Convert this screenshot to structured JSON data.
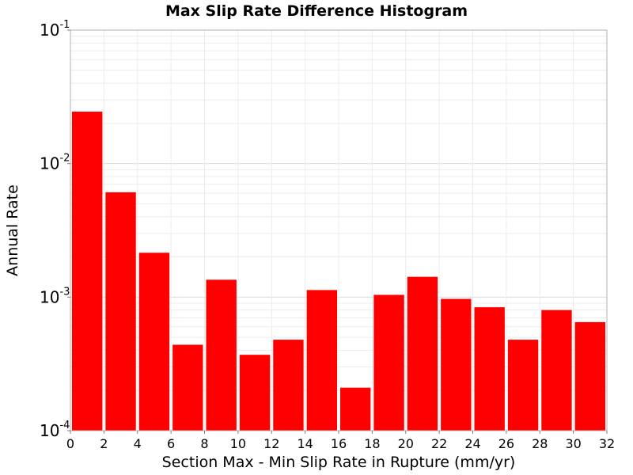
{
  "chart_data": {
    "type": "bar",
    "title": "Max Slip Rate Difference Histogram",
    "xlabel": "Section Max - Min Slip Rate in Rupture (mm/yr)",
    "ylabel": "Annual Rate",
    "xlim": [
      0,
      32
    ],
    "ylim": [
      0.0001,
      0.1
    ],
    "yscale": "log",
    "grid": true,
    "bar_color": "#ff0000",
    "bin_width": 2,
    "x_ticks": [
      0,
      2,
      4,
      6,
      8,
      10,
      12,
      14,
      16,
      18,
      20,
      22,
      24,
      26,
      28,
      30,
      32
    ],
    "y_ticks": [
      {
        "value": 0.0001,
        "base": "10",
        "exp": "-4"
      },
      {
        "value": 0.001,
        "base": "10",
        "exp": "-3"
      },
      {
        "value": 0.01,
        "base": "10",
        "exp": "-2"
      },
      {
        "value": 0.1,
        "base": "10",
        "exp": "-1"
      }
    ],
    "bins": [
      {
        "x0": 0,
        "x1": 2,
        "value": 0.0245
      },
      {
        "x0": 2,
        "x1": 4,
        "value": 0.0061
      },
      {
        "x0": 4,
        "x1": 6,
        "value": 0.00215
      },
      {
        "x0": 6,
        "x1": 8,
        "value": 0.00044
      },
      {
        "x0": 8,
        "x1": 10,
        "value": 0.00135
      },
      {
        "x0": 10,
        "x1": 12,
        "value": 0.00037
      },
      {
        "x0": 12,
        "x1": 14,
        "value": 0.00048
      },
      {
        "x0": 14,
        "x1": 16,
        "value": 0.00113
      },
      {
        "x0": 16,
        "x1": 18,
        "value": 0.00021
      },
      {
        "x0": 18,
        "x1": 20,
        "value": 0.00104
      },
      {
        "x0": 20,
        "x1": 22,
        "value": 0.00142
      },
      {
        "x0": 22,
        "x1": 24,
        "value": 0.00097
      },
      {
        "x0": 24,
        "x1": 26,
        "value": 0.00084
      },
      {
        "x0": 26,
        "x1": 28,
        "value": 0.00048
      },
      {
        "x0": 28,
        "x1": 30,
        "value": 0.0008
      },
      {
        "x0": 30,
        "x1": 32,
        "value": 0.00065
      }
    ]
  }
}
